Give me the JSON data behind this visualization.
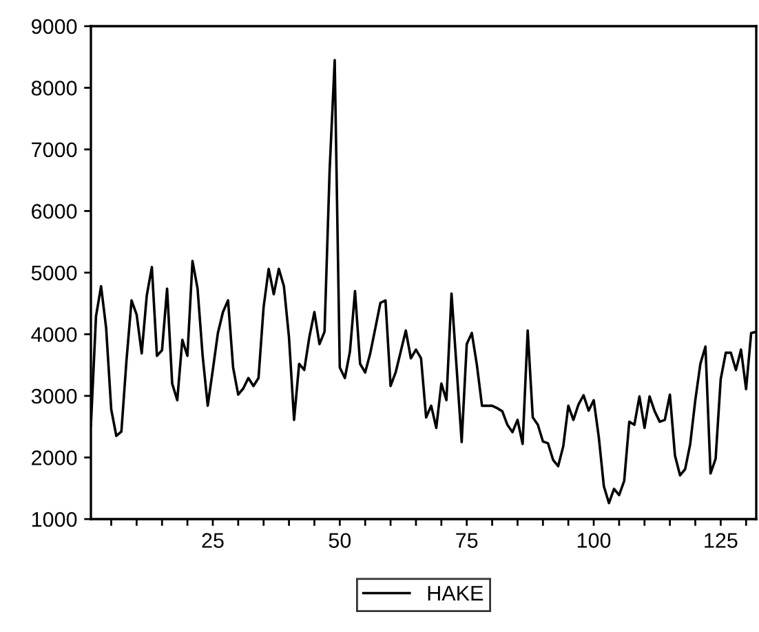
{
  "chart_data": {
    "type": "line",
    "x": [
      1,
      2,
      3,
      4,
      5,
      6,
      7,
      8,
      9,
      10,
      11,
      12,
      13,
      14,
      15,
      16,
      17,
      18,
      19,
      20,
      21,
      22,
      23,
      24,
      25,
      26,
      27,
      28,
      29,
      30,
      31,
      32,
      33,
      34,
      35,
      36,
      37,
      38,
      39,
      40,
      41,
      42,
      43,
      44,
      45,
      46,
      47,
      48,
      49,
      50,
      51,
      52,
      53,
      54,
      55,
      56,
      57,
      58,
      59,
      60,
      61,
      62,
      63,
      64,
      65,
      66,
      67,
      68,
      69,
      70,
      71,
      72,
      73,
      74,
      75,
      76,
      77,
      78,
      79,
      80,
      81,
      82,
      83,
      84,
      85,
      86,
      87,
      88,
      89,
      90,
      91,
      92,
      93,
      94,
      95,
      96,
      97,
      98,
      99,
      100,
      101,
      102,
      103,
      104,
      105,
      106,
      107,
      108,
      109,
      110,
      111,
      112,
      113,
      114,
      115,
      116,
      117,
      118,
      119,
      120,
      121,
      122,
      123,
      124,
      125,
      126,
      127,
      128,
      129,
      130,
      131,
      132
    ],
    "series": [
      {
        "name": "HAKE",
        "color": "#000000",
        "values": [
          2520,
          4290,
          4780,
          4100,
          2780,
          2350,
          2420,
          3570,
          4550,
          4320,
          3690,
          4630,
          5090,
          3650,
          3740,
          4740,
          3200,
          2930,
          3910,
          3650,
          5190,
          4740,
          3650,
          2840,
          3420,
          4020,
          4360,
          4550,
          3460,
          3020,
          3120,
          3290,
          3160,
          3290,
          4440,
          5060,
          4650,
          5060,
          4780,
          3950,
          2610,
          3520,
          3420,
          3950,
          4360,
          3840,
          4040,
          6660,
          8450,
          3460,
          3290,
          3720,
          4700,
          3520,
          3380,
          3690,
          4100,
          4510,
          4550,
          3160,
          3380,
          3720,
          4060,
          3610,
          3750,
          3610,
          2650,
          2840,
          2480,
          3200,
          2930,
          4660,
          3460,
          2250,
          3840,
          4020,
          3500,
          2840,
          2840,
          2840,
          2800,
          2750,
          2530,
          2410,
          2610,
          2220,
          4060,
          2650,
          2530,
          2260,
          2230,
          1960,
          1860,
          2180,
          2840,
          2610,
          2860,
          3010,
          2760,
          2930,
          2330,
          1530,
          1260,
          1490,
          1390,
          1620,
          2580,
          2530,
          2990,
          2480,
          2990,
          2750,
          2580,
          2610,
          3020,
          2030,
          1710,
          1810,
          2220,
          2930,
          3520,
          3800,
          1740,
          1980,
          3270,
          3700,
          3700,
          3420,
          3750,
          3110,
          4020,
          4040
        ]
      }
    ],
    "xlim": [
      1,
      132
    ],
    "xticks": [
      {
        "value": 5,
        "label": null
      },
      {
        "value": 10,
        "label": null
      },
      {
        "value": 15,
        "label": null
      },
      {
        "value": 20,
        "label": null
      },
      25,
      {
        "value": 30,
        "label": null
      },
      {
        "value": 35,
        "label": null
      },
      {
        "value": 40,
        "label": null
      },
      {
        "value": 45,
        "label": null
      },
      50,
      {
        "value": 55,
        "label": null
      },
      {
        "value": 60,
        "label": null
      },
      {
        "value": 65,
        "label": null
      },
      {
        "value": 70,
        "label": null
      },
      75,
      {
        "value": 80,
        "label": null
      },
      {
        "value": 85,
        "label": null
      },
      {
        "value": 90,
        "label": null
      },
      {
        "value": 95,
        "label": null
      },
      100,
      {
        "value": 105,
        "label": null
      },
      {
        "value": 110,
        "label": null
      },
      {
        "value": 115,
        "label": null
      },
      {
        "value": 120,
        "label": null
      },
      125,
      {
        "value": 130,
        "label": null
      }
    ],
    "ylim": [
      1000,
      9000
    ],
    "yticks": [
      1000,
      2000,
      3000,
      4000,
      5000,
      6000,
      7000,
      8000,
      9000
    ],
    "grid": false,
    "legend": "bottom",
    "marker": "none",
    "line_style": "solid"
  }
}
